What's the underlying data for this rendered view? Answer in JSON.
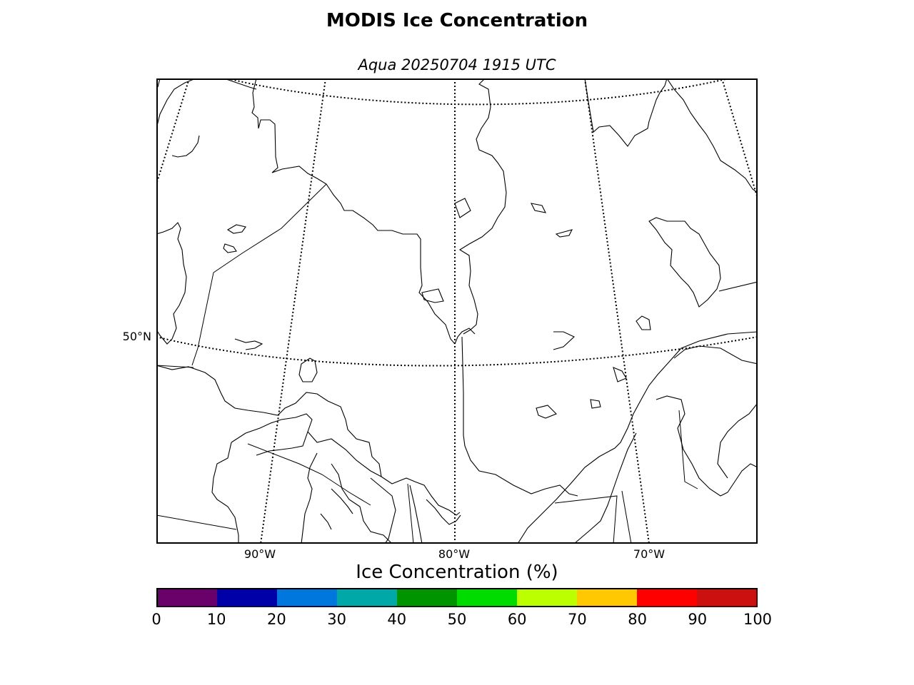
{
  "title": "MODIS Ice Concentration",
  "subtitle": "Aqua 20250704 1915 UTC",
  "map": {
    "latitude_labels": [
      "50°N"
    ],
    "longitude_labels": [
      "90°W",
      "80°W",
      "70°W"
    ],
    "graticule_style": "dotted",
    "land_fill": "white"
  },
  "colorbar": {
    "label": "Ice Concentration (%)",
    "ticks": [
      "0",
      "10",
      "20",
      "30",
      "40",
      "50",
      "60",
      "70",
      "80",
      "90",
      "100"
    ],
    "colors": [
      "#6a006a",
      "#0000a8",
      "#0077dd",
      "#00a8a8",
      "#009400",
      "#00dc00",
      "#bbff00",
      "#ffc800",
      "#ff0000",
      "#cc1010"
    ]
  }
}
